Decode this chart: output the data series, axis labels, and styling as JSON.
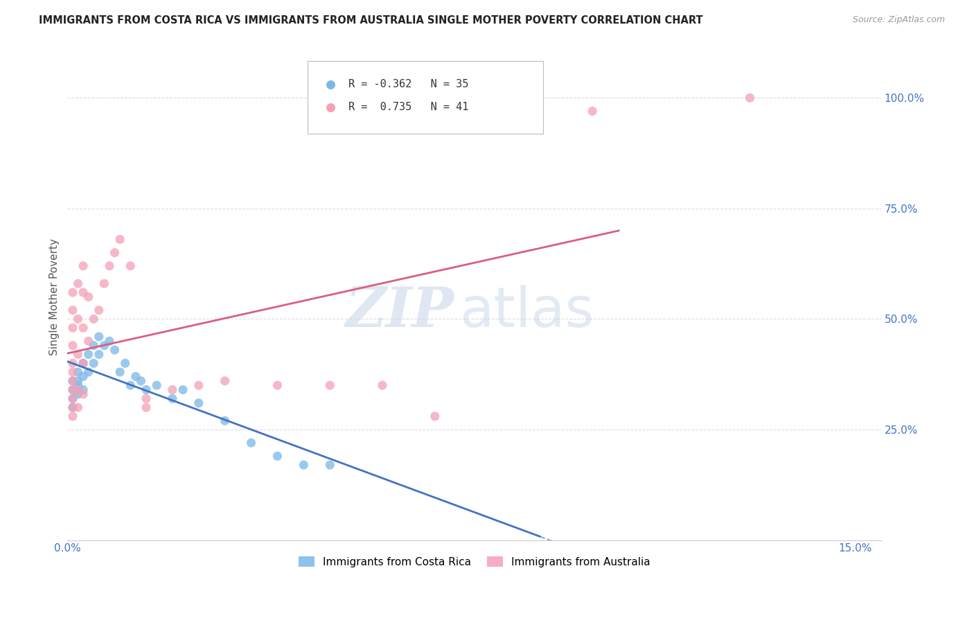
{
  "title": "IMMIGRANTS FROM COSTA RICA VS IMMIGRANTS FROM AUSTRALIA SINGLE MOTHER POVERTY CORRELATION CHART",
  "source": "Source: ZipAtlas.com",
  "ylabel": "Single Mother Poverty",
  "r_costa_rica": -0.362,
  "n_costa_rica": 35,
  "r_australia": 0.735,
  "n_australia": 41,
  "costa_rica_dots": [
    [
      0.001,
      0.34
    ],
    [
      0.001,
      0.36
    ],
    [
      0.001,
      0.32
    ],
    [
      0.001,
      0.3
    ],
    [
      0.002,
      0.35
    ],
    [
      0.002,
      0.33
    ],
    [
      0.002,
      0.38
    ],
    [
      0.002,
      0.36
    ],
    [
      0.003,
      0.37
    ],
    [
      0.003,
      0.4
    ],
    [
      0.003,
      0.34
    ],
    [
      0.004,
      0.42
    ],
    [
      0.004,
      0.38
    ],
    [
      0.005,
      0.44
    ],
    [
      0.005,
      0.4
    ],
    [
      0.006,
      0.46
    ],
    [
      0.006,
      0.42
    ],
    [
      0.007,
      0.44
    ],
    [
      0.008,
      0.45
    ],
    [
      0.009,
      0.43
    ],
    [
      0.01,
      0.38
    ],
    [
      0.011,
      0.4
    ],
    [
      0.012,
      0.35
    ],
    [
      0.013,
      0.37
    ],
    [
      0.014,
      0.36
    ],
    [
      0.015,
      0.34
    ],
    [
      0.017,
      0.35
    ],
    [
      0.02,
      0.32
    ],
    [
      0.022,
      0.34
    ],
    [
      0.025,
      0.31
    ],
    [
      0.03,
      0.27
    ],
    [
      0.035,
      0.22
    ],
    [
      0.04,
      0.19
    ],
    [
      0.045,
      0.17
    ],
    [
      0.05,
      0.17
    ]
  ],
  "australia_dots": [
    [
      0.001,
      0.28
    ],
    [
      0.001,
      0.3
    ],
    [
      0.001,
      0.32
    ],
    [
      0.001,
      0.34
    ],
    [
      0.001,
      0.36
    ],
    [
      0.001,
      0.38
    ],
    [
      0.001,
      0.4
    ],
    [
      0.001,
      0.44
    ],
    [
      0.001,
      0.48
    ],
    [
      0.001,
      0.52
    ],
    [
      0.001,
      0.56
    ],
    [
      0.002,
      0.3
    ],
    [
      0.002,
      0.34
    ],
    [
      0.002,
      0.42
    ],
    [
      0.002,
      0.5
    ],
    [
      0.002,
      0.58
    ],
    [
      0.003,
      0.33
    ],
    [
      0.003,
      0.4
    ],
    [
      0.003,
      0.48
    ],
    [
      0.003,
      0.56
    ],
    [
      0.003,
      0.62
    ],
    [
      0.004,
      0.45
    ],
    [
      0.004,
      0.55
    ],
    [
      0.005,
      0.5
    ],
    [
      0.006,
      0.52
    ],
    [
      0.007,
      0.58
    ],
    [
      0.008,
      0.62
    ],
    [
      0.009,
      0.65
    ],
    [
      0.01,
      0.68
    ],
    [
      0.012,
      0.62
    ],
    [
      0.015,
      0.3
    ],
    [
      0.015,
      0.32
    ],
    [
      0.02,
      0.34
    ],
    [
      0.025,
      0.35
    ],
    [
      0.03,
      0.36
    ],
    [
      0.04,
      0.35
    ],
    [
      0.05,
      0.35
    ],
    [
      0.06,
      0.35
    ],
    [
      0.07,
      0.28
    ],
    [
      0.1,
      0.97
    ],
    [
      0.13,
      1.0
    ]
  ],
  "xlim_min": 0.0,
  "xlim_max": 0.155,
  "ylim_min": 0.0,
  "ylim_max": 1.1,
  "xtick_positions": [
    0.0,
    0.15
  ],
  "xtick_labels": [
    "0.0%",
    "15.0%"
  ],
  "ytick_positions": [
    0.25,
    0.5,
    0.75,
    1.0
  ],
  "ytick_labels": [
    "25.0%",
    "50.0%",
    "75.0%",
    "100.0%"
  ],
  "background_color": "#ffffff",
  "grid_color": "#dddddd",
  "costa_rica_dot_color": "#7ab8e8",
  "australia_dot_color": "#f4a0b5",
  "costa_rica_line_color": "#4472c4",
  "australia_line_color": "#d95f7f",
  "legend_cr_label": "Immigrants from Costa Rica",
  "legend_au_label": "Immigrants from Australia",
  "watermark_zip_color": "#c5d5ea",
  "watermark_atlas_color": "#b8cce4"
}
